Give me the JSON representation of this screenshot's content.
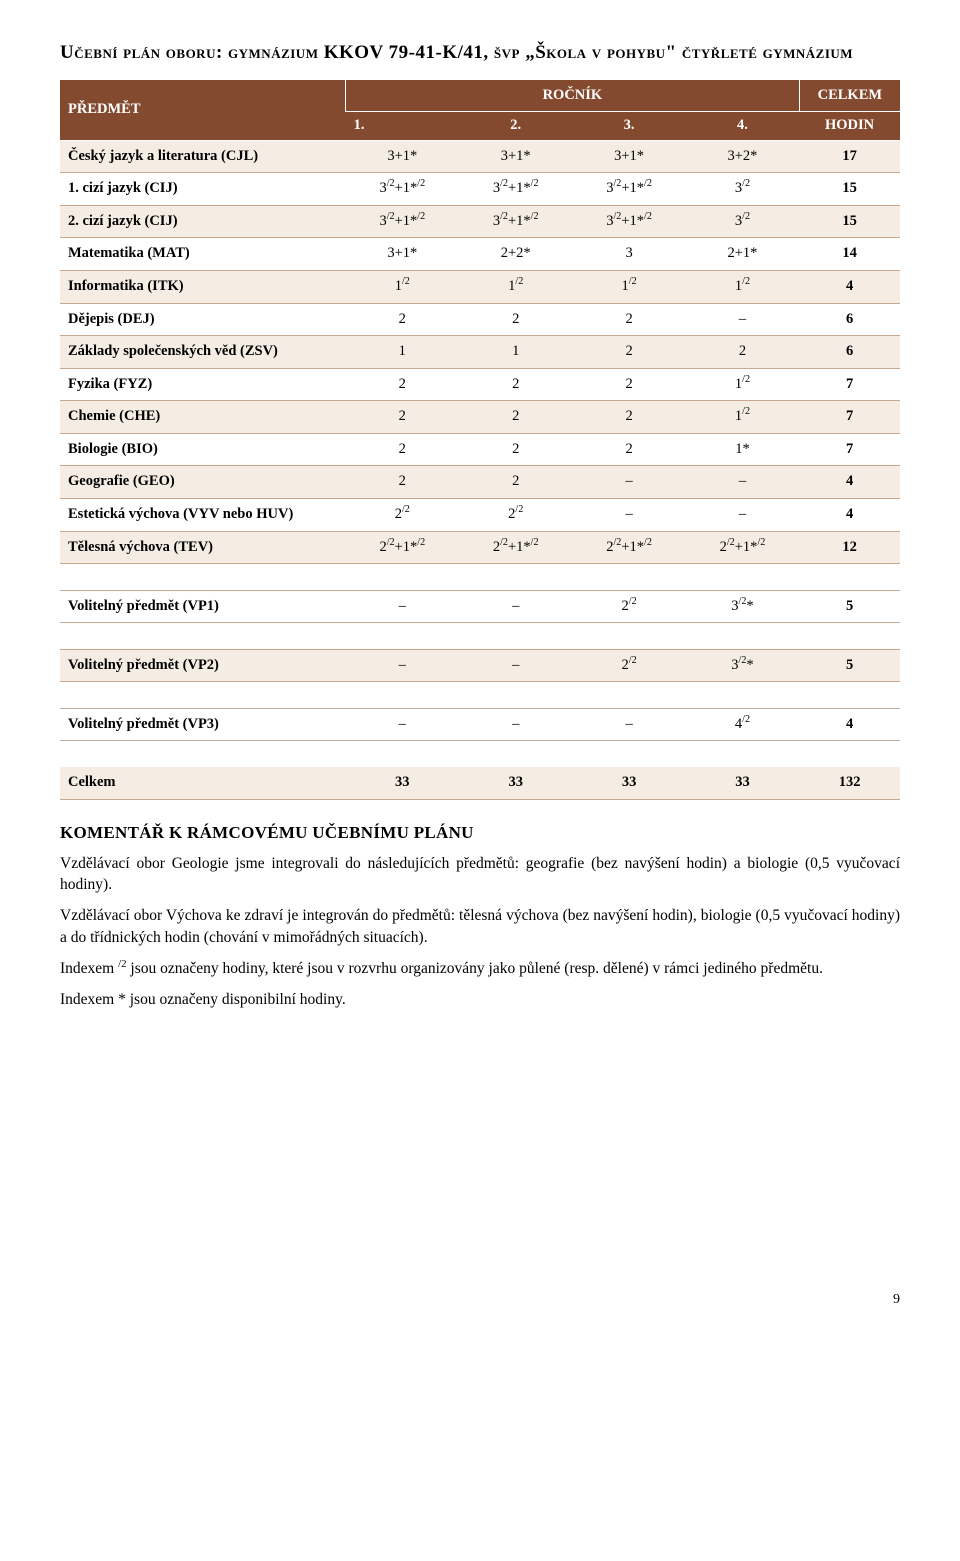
{
  "title": "Učební plán oboru: gymnázium KKOV 79-41-K/41, švp „Škola v pohybu\" čtyřleté gymnázium",
  "header": {
    "predmet": "PŘEDMĚT",
    "rocnik": "ROČNÍK",
    "celkem": "CELKEM",
    "y1": "1.",
    "y2": "2.",
    "y3": "3.",
    "y4": "4.",
    "hodin": "HODIN"
  },
  "rows": [
    {
      "alt": true,
      "subj": "Český jazyk a literatura (CJL)",
      "c": [
        "3+1*",
        "3+1*",
        "3+1*",
        "3+2*"
      ],
      "tot": "17"
    },
    {
      "alt": false,
      "subj": "1. cizí jazyk (CIJ)",
      "c": [
        "3<sup>/2</sup>+1*<sup>/2</sup>",
        "3<sup>/2</sup>+1*<sup>/2</sup>",
        "3<sup>/2</sup>+1*<sup>/2</sup>",
        "3<sup>/2</sup>"
      ],
      "tot": "15"
    },
    {
      "alt": true,
      "subj": "2. cizí jazyk (CIJ)",
      "c": [
        "3<sup>/2</sup>+1*<sup>/2</sup>",
        "3<sup>/2</sup>+1*<sup>/2</sup>",
        "3<sup>/2</sup>+1*<sup>/2</sup>",
        "3<sup>/2</sup>"
      ],
      "tot": "15"
    },
    {
      "alt": false,
      "subj": "Matematika (MAT)",
      "c": [
        "3+1*",
        "2+2*",
        "3",
        "2+1*"
      ],
      "tot": "14"
    },
    {
      "alt": true,
      "subj": "Informatika (ITK)",
      "c": [
        "1<sup>/2</sup>",
        "1<sup>/2</sup>",
        "1<sup>/2</sup>",
        "1<sup>/2</sup>"
      ],
      "tot": "4"
    },
    {
      "alt": false,
      "subj": "Dějepis (DEJ)",
      "c": [
        "2",
        "2",
        "2",
        "–"
      ],
      "tot": "6"
    },
    {
      "alt": true,
      "subj": "Základy společenských věd (ZSV)",
      "c": [
        "1",
        "1",
        "2",
        "2"
      ],
      "tot": "6"
    },
    {
      "alt": false,
      "subj": "Fyzika (FYZ)",
      "c": [
        "2",
        "2",
        "2",
        "1<sup>/2</sup>"
      ],
      "tot": "7"
    },
    {
      "alt": true,
      "subj": "Chemie (CHE)",
      "c": [
        "2",
        "2",
        "2",
        "1<sup>/2</sup>"
      ],
      "tot": "7"
    },
    {
      "alt": false,
      "subj": "Biologie (BIO)",
      "c": [
        "2",
        "2",
        "2",
        "1*"
      ],
      "tot": "7"
    },
    {
      "alt": true,
      "subj": "Geografie (GEO)",
      "c": [
        "2",
        "2",
        "–",
        "–"
      ],
      "tot": "4"
    },
    {
      "alt": false,
      "subj": "Estetická výchova (VYV nebo HUV)",
      "c": [
        "2<sup>/2</sup>",
        "2<sup>/2</sup>",
        "–",
        "–"
      ],
      "tot": "4"
    },
    {
      "alt": true,
      "subj": "Tělesná výchova (TEV)",
      "c": [
        "2<sup>/2</sup>+1*<sup>/2</sup>",
        "2<sup>/2</sup>+1*<sup>/2</sup>",
        "2<sup>/2</sup>+1*<sup>/2</sup>",
        "2<sup>/2</sup>+1*<sup>/2</sup>"
      ],
      "tot": "12"
    }
  ],
  "optional": [
    {
      "alt": false,
      "subj": "Volitelný předmět (VP1)",
      "c": [
        "–",
        "–",
        "2<sup>/2</sup>",
        "3<sup>/2</sup>*"
      ],
      "tot": "5"
    },
    {
      "alt": true,
      "subj": "Volitelný předmět (VP2)",
      "c": [
        "–",
        "–",
        "2<sup>/2</sup>",
        "3<sup>/2</sup>*"
      ],
      "tot": "5"
    },
    {
      "alt": false,
      "subj": "Volitelný předmět (VP3)",
      "c": [
        "–",
        "–",
        "–",
        "4<sup>/2</sup>"
      ],
      "tot": "4"
    }
  ],
  "total": {
    "subj": "Celkem",
    "c": [
      "33",
      "33",
      "33",
      "33"
    ],
    "tot": "132"
  },
  "commentary_heading": "KOMENTÁŘ K RÁMCOVÉMU UČEBNÍMU PLÁNU",
  "p1": "Vzdělávací obor Geologie jsme integrovali do následujících předmětů: geografie (bez navýšení hodin) a biologie (0,5 vyučovací hodiny).",
  "p2": "Vzdělávací obor Výchova ke zdraví je integrován do předmětů: tělesná výchova (bez navýšení hodin), biologie (0,5 vyučovací hodiny) a do třídnických hodin (chování v mimořádných situacích).",
  "p3_a": "Indexem ",
  "p3_sup": "/2",
  "p3_b": " jsou označeny hodiny, které jsou v rozvrhu organizovány jako půlené (resp. dělené) v rámci jediného předmětu.",
  "p4": "Indexem * jsou označeny disponibilní hodiny.",
  "pagenum": "9"
}
